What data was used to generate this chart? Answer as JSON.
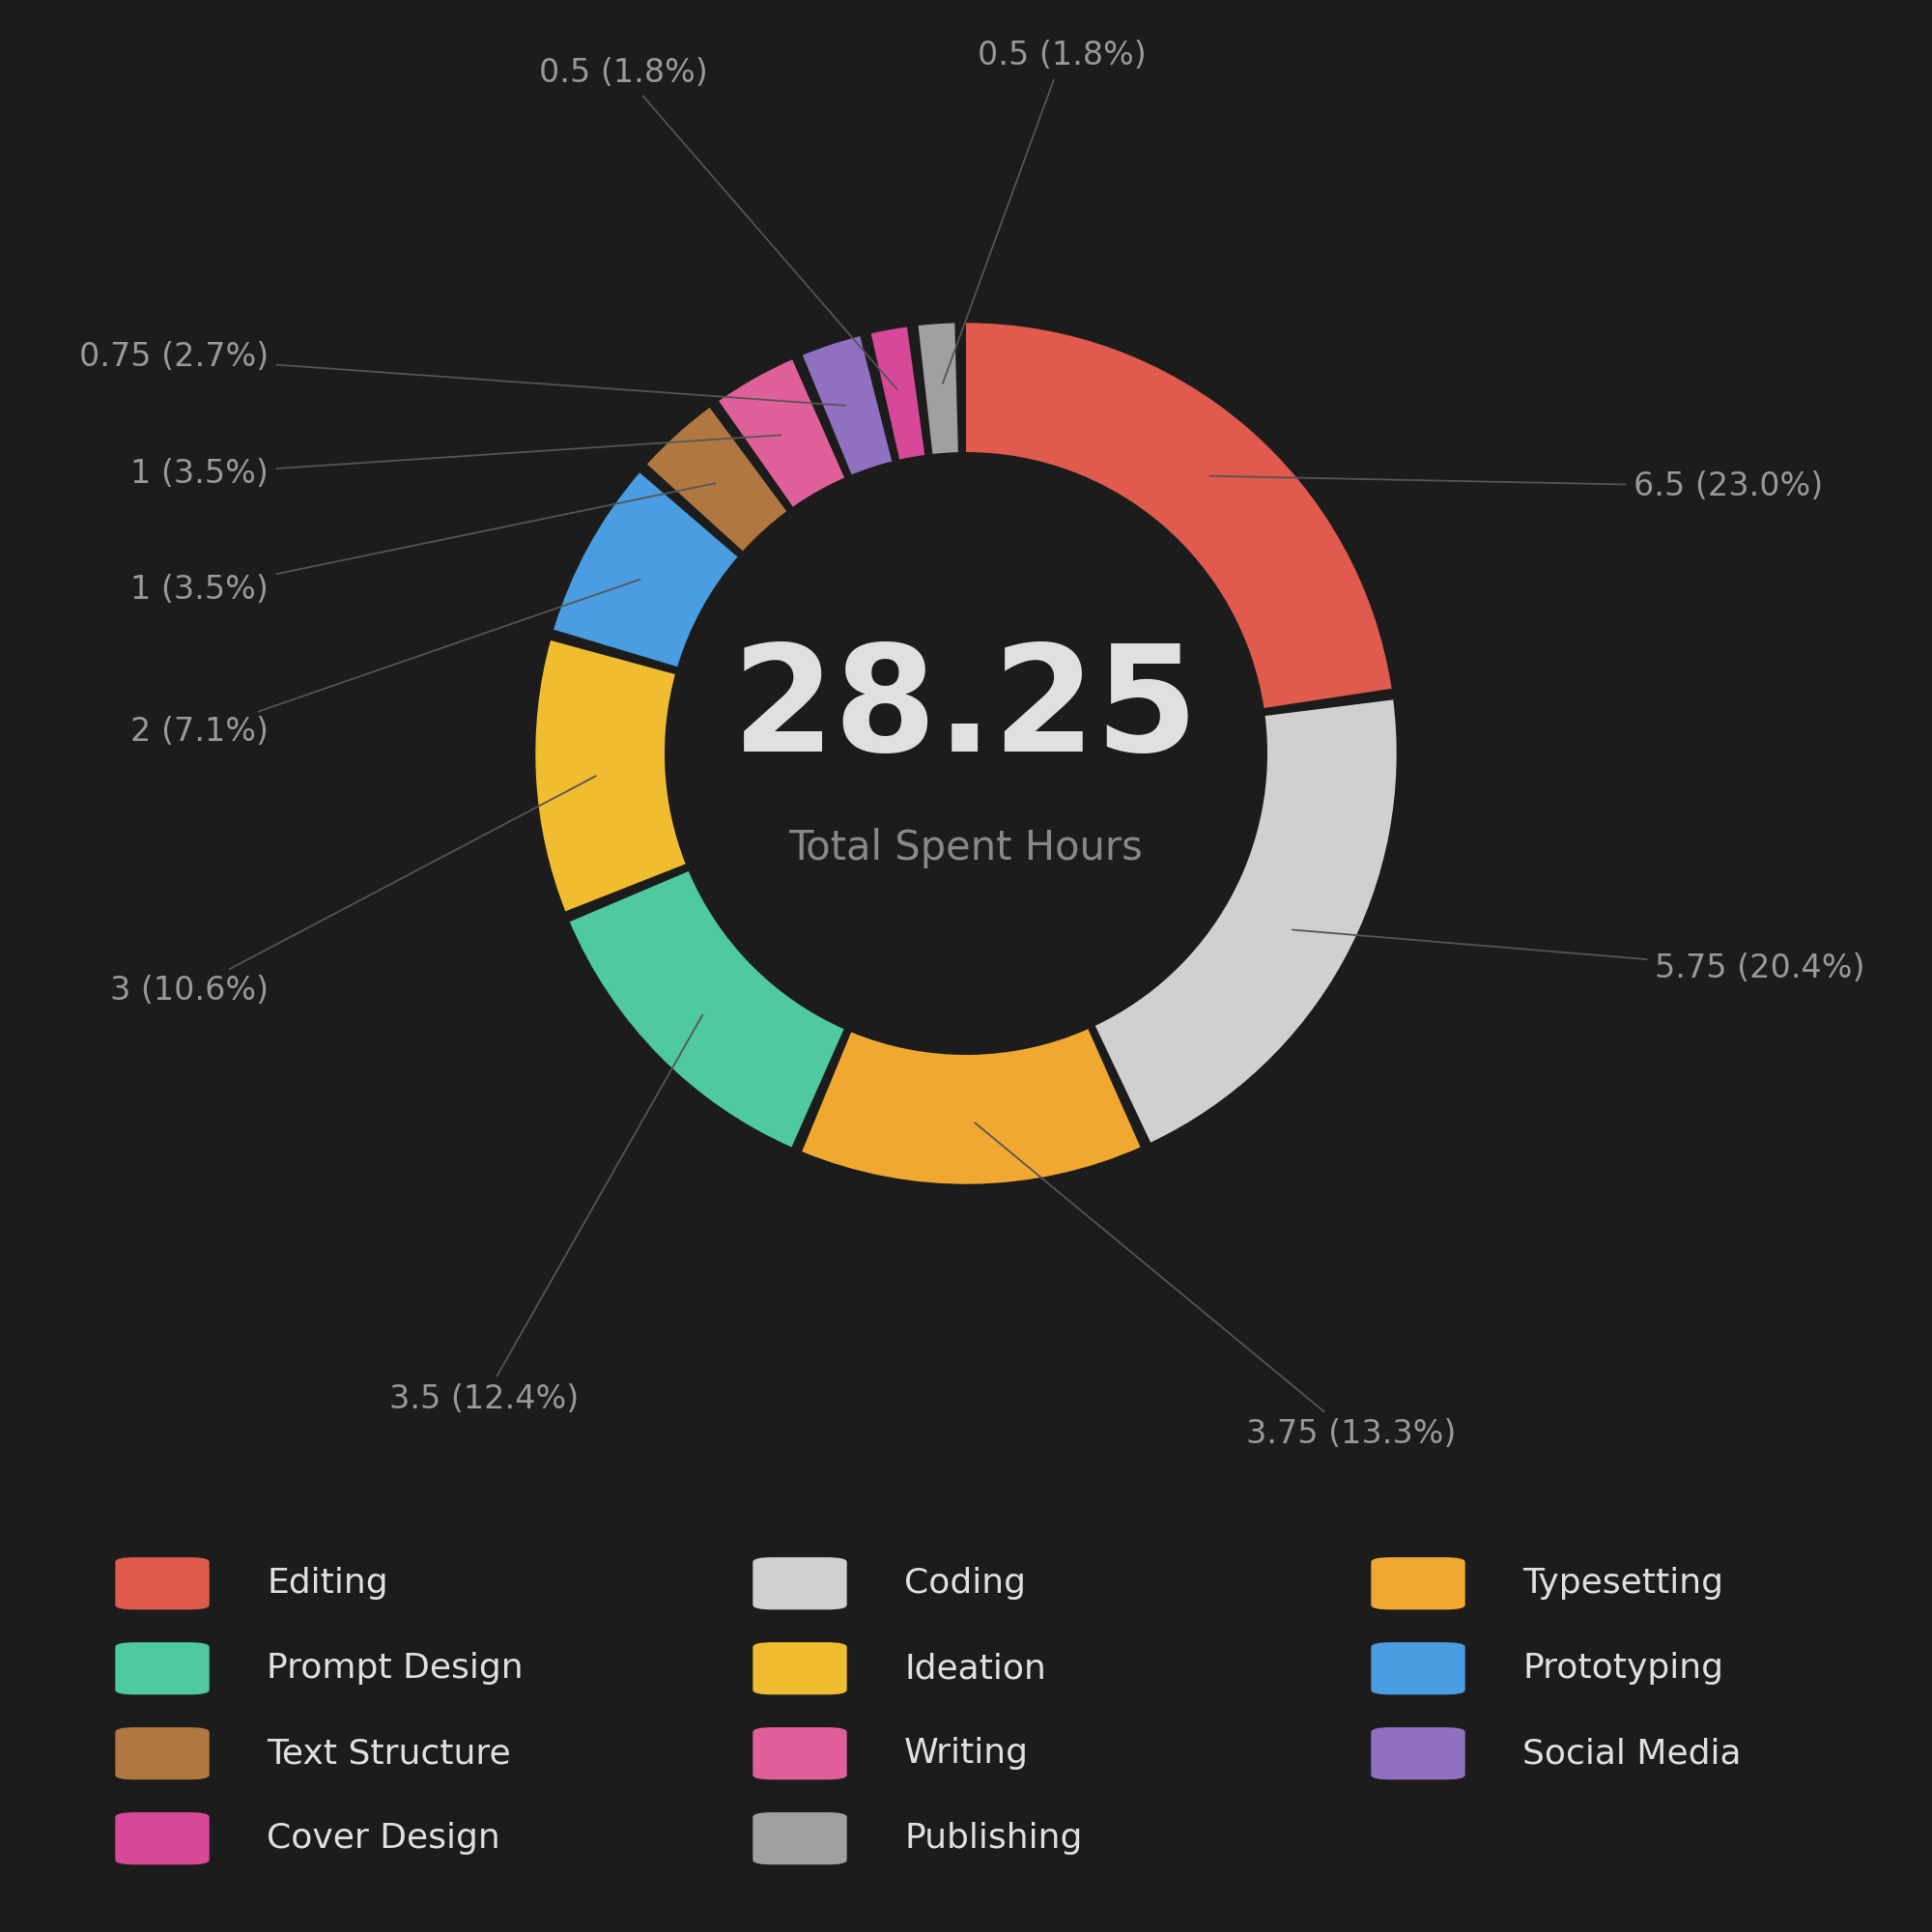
{
  "total_hours": 28.25,
  "center_label": "Total Spent Hours",
  "background_color": "#1c1c1c",
  "text_color": "#999999",
  "center_number_color": "#e0e0e0",
  "segments": [
    {
      "label": "Editing",
      "hours": 6.5,
      "pct": 23.0,
      "color": "#e05a4e"
    },
    {
      "label": "Coding",
      "hours": 5.75,
      "pct": 20.4,
      "color": "#d0d0d0"
    },
    {
      "label": "Typesetting",
      "hours": 3.75,
      "pct": 13.3,
      "color": "#f0a830"
    },
    {
      "label": "Prompt Design",
      "hours": 3.5,
      "pct": 12.4,
      "color": "#4ec9a0"
    },
    {
      "label": "Ideation",
      "hours": 3.0,
      "pct": 10.6,
      "color": "#f0bc30"
    },
    {
      "label": "Prototyping",
      "hours": 2.0,
      "pct": 7.1,
      "color": "#4a9de0"
    },
    {
      "label": "Text Structure",
      "hours": 1.0,
      "pct": 3.5,
      "color": "#b07840"
    },
    {
      "label": "Writing",
      "hours": 1.0,
      "pct": 3.5,
      "color": "#e0609a"
    },
    {
      "label": "Social Media",
      "hours": 0.75,
      "pct": 2.7,
      "color": "#9070c0"
    },
    {
      "label": "Cover Design",
      "hours": 0.5,
      "pct": 1.8,
      "color": "#d84898"
    },
    {
      "label": "Publishing",
      "hours": 0.5,
      "pct": 1.8,
      "color": "#a0a0a0"
    }
  ],
  "label_texts": [
    "6.5 (23.0%)",
    "5.75 (20.4%)",
    "3.75 (13.3%)",
    "3.5 (12.4%)",
    "3 (10.6%)",
    "2 (7.1%)",
    "1 (3.5%)",
    "1 (3.5%)",
    "0.75 (2.7%)",
    "0.5 (1.8%)",
    "0.5 (1.8%)"
  ],
  "legend_cols": [
    [
      {
        "label": "Editing",
        "color": "#e05a4e"
      },
      {
        "label": "Prompt Design",
        "color": "#4ec9a0"
      },
      {
        "label": "Text Structure",
        "color": "#b07840"
      },
      {
        "label": "Cover Design",
        "color": "#d84898"
      }
    ],
    [
      {
        "label": "Coding",
        "color": "#d0d0d0"
      },
      {
        "label": "Ideation",
        "color": "#f0bc30"
      },
      {
        "label": "Writing",
        "color": "#e0609a"
      },
      {
        "label": "Publishing",
        "color": "#a0a0a0"
      }
    ],
    [
      {
        "label": "Typesetting",
        "color": "#f0a830"
      },
      {
        "label": "Prototyping",
        "color": "#4a9de0"
      },
      {
        "label": "Social Media",
        "color": "#9070c0"
      }
    ]
  ]
}
